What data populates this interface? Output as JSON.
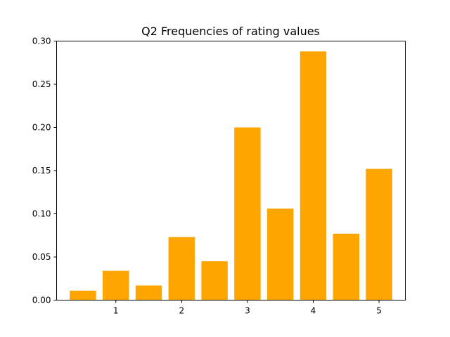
{
  "chart_data": {
    "type": "bar",
    "title": "Q2 Frequencies of rating values",
    "xlabel": "",
    "ylabel": "",
    "x": [
      0.5,
      1.0,
      1.5,
      2.0,
      2.5,
      3.0,
      3.5,
      4.0,
      4.5,
      5.0
    ],
    "values": [
      0.011,
      0.034,
      0.017,
      0.073,
      0.045,
      0.2,
      0.106,
      0.288,
      0.077,
      0.152
    ],
    "bar_width": 0.4,
    "bar_color": "#ffa500",
    "xlim": [
      0.1,
      5.4
    ],
    "ylim": [
      0,
      0.3
    ],
    "xticks": [
      1,
      2,
      3,
      4,
      5
    ],
    "xtick_labels": [
      "1",
      "2",
      "3",
      "4",
      "5"
    ],
    "yticks": [
      0.0,
      0.05,
      0.1,
      0.15,
      0.2,
      0.25,
      0.3
    ],
    "ytick_labels": [
      "0.00",
      "0.05",
      "0.10",
      "0.15",
      "0.20",
      "0.25",
      "0.30"
    ],
    "grid": false,
    "legend": "none"
  }
}
